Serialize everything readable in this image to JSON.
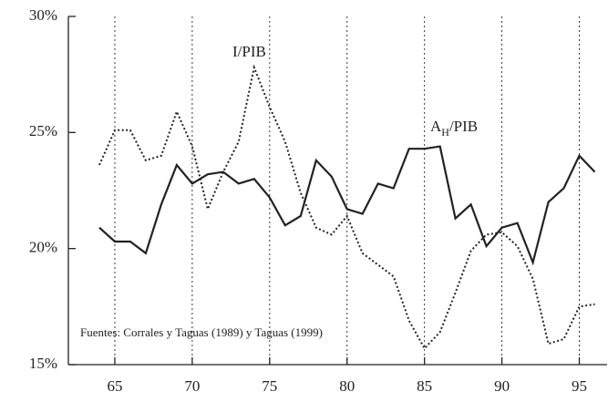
{
  "chart_data": {
    "type": "line",
    "annotation": "Fuentes:  Corrales y Taguas (1989) y Taguas (1999)",
    "x": [
      64,
      65,
      66,
      67,
      68,
      69,
      70,
      71,
      72,
      73,
      74,
      75,
      76,
      77,
      78,
      79,
      80,
      81,
      82,
      83,
      84,
      85,
      86,
      87,
      88,
      89,
      90,
      91,
      92,
      93,
      94,
      95,
      96
    ],
    "series": [
      {
        "name": "I/PIB",
        "color": "#222222",
        "dash": "dotted",
        "values": [
          23.6,
          25.1,
          25.1,
          23.8,
          24.0,
          25.9,
          24.4,
          21.7,
          23.3,
          24.6,
          27.8,
          26.1,
          24.6,
          22.4,
          20.9,
          20.6,
          21.4,
          19.8,
          19.3,
          18.8,
          16.9,
          15.7,
          16.4,
          18.1,
          19.9,
          20.6,
          20.7,
          20.1,
          18.7,
          15.9,
          16.1,
          17.5,
          17.6
        ]
      },
      {
        "name": "AH/PIB",
        "color": "#222222",
        "dash": "solid",
        "values": [
          20.9,
          20.3,
          20.3,
          19.8,
          21.9,
          23.6,
          22.8,
          23.2,
          23.3,
          22.8,
          23.0,
          22.2,
          21.0,
          21.4,
          23.8,
          23.1,
          21.7,
          21.5,
          22.8,
          22.6,
          24.3,
          24.3,
          24.4,
          21.3,
          21.9,
          20.1,
          20.9,
          21.1,
          19.4,
          22.0,
          22.6,
          24.0,
          23.3
        ]
      }
    ],
    "xlim": [
      62,
      96.5
    ],
    "ylim": [
      15,
      30
    ],
    "xticks": [
      65,
      70,
      75,
      80,
      85,
      90,
      95
    ],
    "yticks": [
      {
        "value": 15,
        "label": "15%"
      },
      {
        "value": 20,
        "label": "20%"
      },
      {
        "value": 25,
        "label": "25%"
      },
      {
        "value": 30,
        "label": "30%"
      }
    ],
    "grid": true
  }
}
